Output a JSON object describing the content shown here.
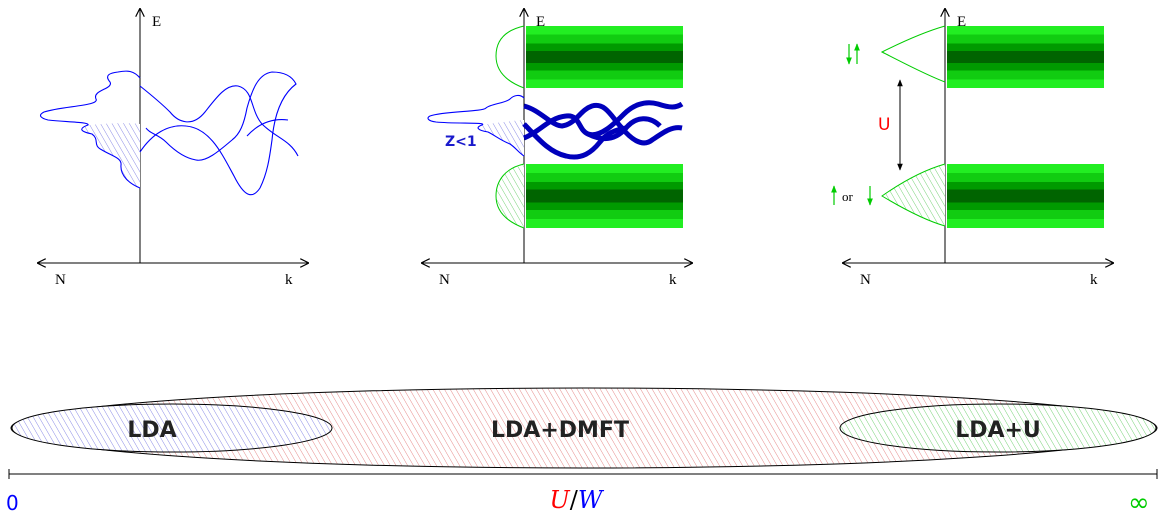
{
  "panels": [
    {
      "id": "lda",
      "axis_energy": "E",
      "axis_dos": "N",
      "axis_k": "k",
      "annotation": ""
    },
    {
      "id": "dmft",
      "axis_energy": "E",
      "axis_dos": "N",
      "axis_k": "k",
      "annotation": "Z<1"
    },
    {
      "id": "ldau",
      "axis_energy": "E",
      "axis_dos": "N",
      "axis_k": "k",
      "gap_label": "U",
      "spin_label_or": "or"
    }
  ],
  "regimes": {
    "lda": "LDA",
    "dmft": "LDA+DMFT",
    "ldau": "LDA+U"
  },
  "scale": {
    "start": "0",
    "ratio_numerator": "U",
    "ratio_slash": "/",
    "ratio_denominator": "W",
    "end": "∞"
  },
  "colors": {
    "lda": "#0000ff",
    "dmft": "#ff0000",
    "ldau": "#00cc00",
    "band_dark": "#006400",
    "z_label": "#1a1acc"
  }
}
